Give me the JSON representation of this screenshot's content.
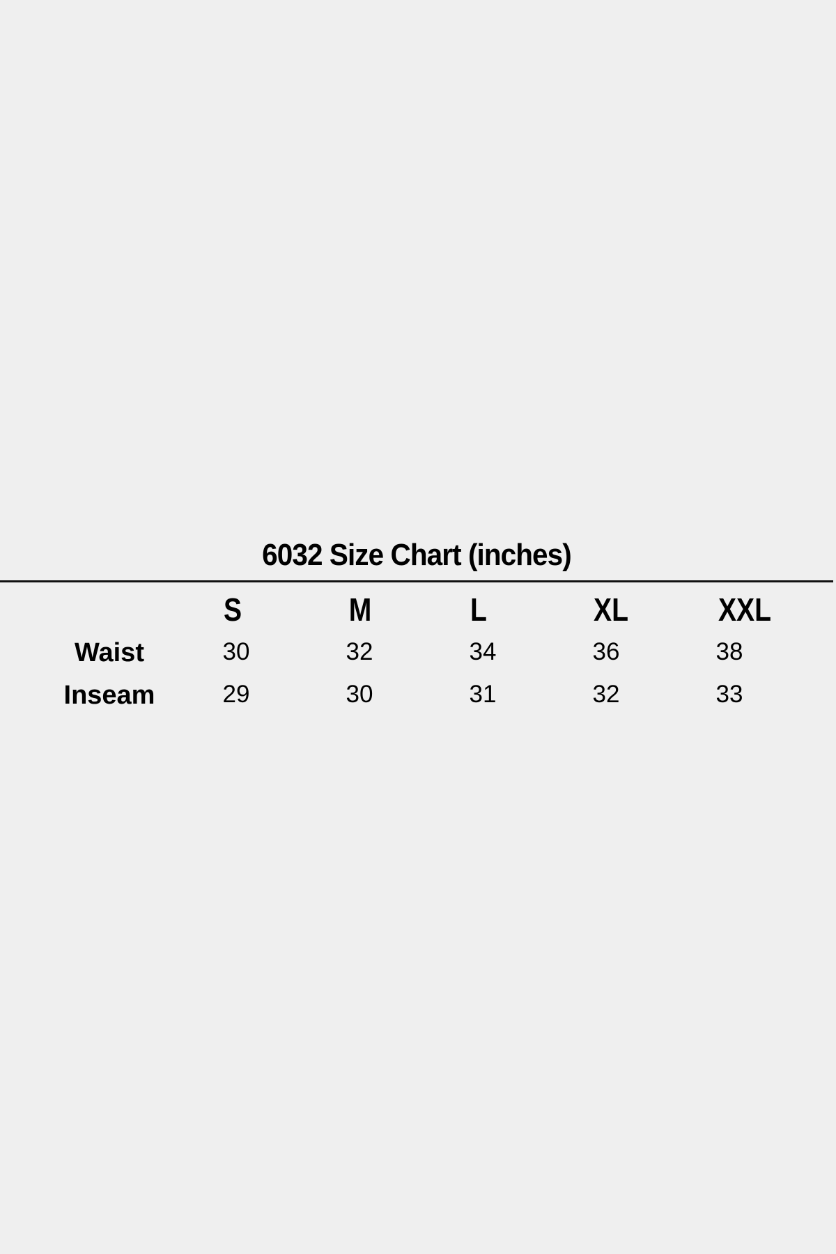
{
  "title": "6032 Size Chart (inches)",
  "table": {
    "columns": [
      "S",
      "M",
      "L",
      "XL",
      "XXL"
    ],
    "rows": [
      {
        "label": "Waist",
        "values": [
          "30",
          "32",
          "34",
          "36",
          "38"
        ]
      },
      {
        "label": "Inseam",
        "values": [
          "29",
          "30",
          "31",
          "32",
          "33"
        ]
      }
    ]
  }
}
